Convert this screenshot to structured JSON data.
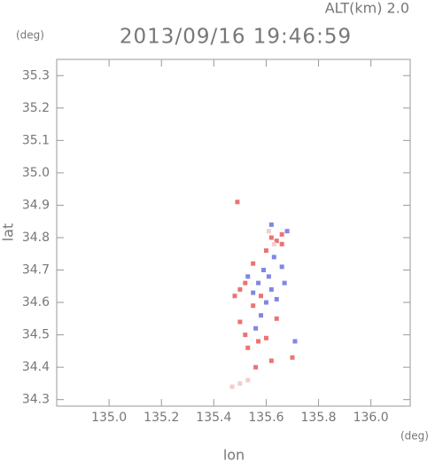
{
  "chart_data": {
    "type": "scatter",
    "title": "2013/09/16 19:46:59",
    "annotation": "ALT(km) 2.0",
    "x_unit": "(deg)",
    "y_unit": "(deg)",
    "x_label": "lon",
    "y_label": "lat",
    "xlim": [
      134.8,
      136.15
    ],
    "ylim": [
      34.28,
      35.35
    ],
    "xticks": [
      {
        "value": 135.0,
        "label": "135.0"
      },
      135.2,
      135.4,
      135.6,
      135.8,
      {
        "value": 136.0,
        "label": "136.0"
      }
    ],
    "yticks": [
      34.3,
      34.4,
      34.5,
      34.6,
      34.7,
      34.8,
      34.9,
      {
        "value": 35.0,
        "label": "35.0"
      },
      35.1,
      35.2,
      35.3
    ],
    "series": [
      {
        "color": "#e85a5a",
        "x": [
          135.49,
          135.62,
          135.64,
          135.66,
          135.6,
          135.55,
          135.52,
          135.5,
          135.48,
          135.55,
          135.52,
          135.57,
          135.6,
          135.64,
          135.58,
          135.7,
          135.62,
          135.56,
          135.66,
          135.5,
          135.53
        ],
        "values": [
          34.91,
          34.8,
          34.79,
          34.81,
          34.76,
          34.72,
          34.66,
          34.64,
          34.62,
          34.59,
          34.5,
          34.48,
          34.49,
          34.55,
          34.62,
          34.43,
          34.42,
          34.4,
          34.78,
          34.54,
          34.46
        ]
      },
      {
        "color": "#6a72e0",
        "x": [
          135.68,
          135.63,
          135.66,
          135.61,
          135.57,
          135.62,
          135.55,
          135.64,
          135.58,
          135.56,
          135.71,
          135.59,
          135.67,
          135.6,
          135.53,
          135.62
        ],
        "values": [
          34.82,
          34.74,
          34.71,
          34.68,
          34.66,
          34.64,
          34.63,
          34.61,
          34.56,
          34.52,
          34.48,
          34.7,
          34.66,
          34.6,
          34.68,
          34.84
        ]
      },
      {
        "color": "#f2c4c4",
        "x": [
          135.47,
          135.5,
          135.53,
          135.63,
          135.61
        ],
        "values": [
          34.34,
          34.35,
          34.36,
          34.78,
          34.82
        ]
      }
    ]
  }
}
